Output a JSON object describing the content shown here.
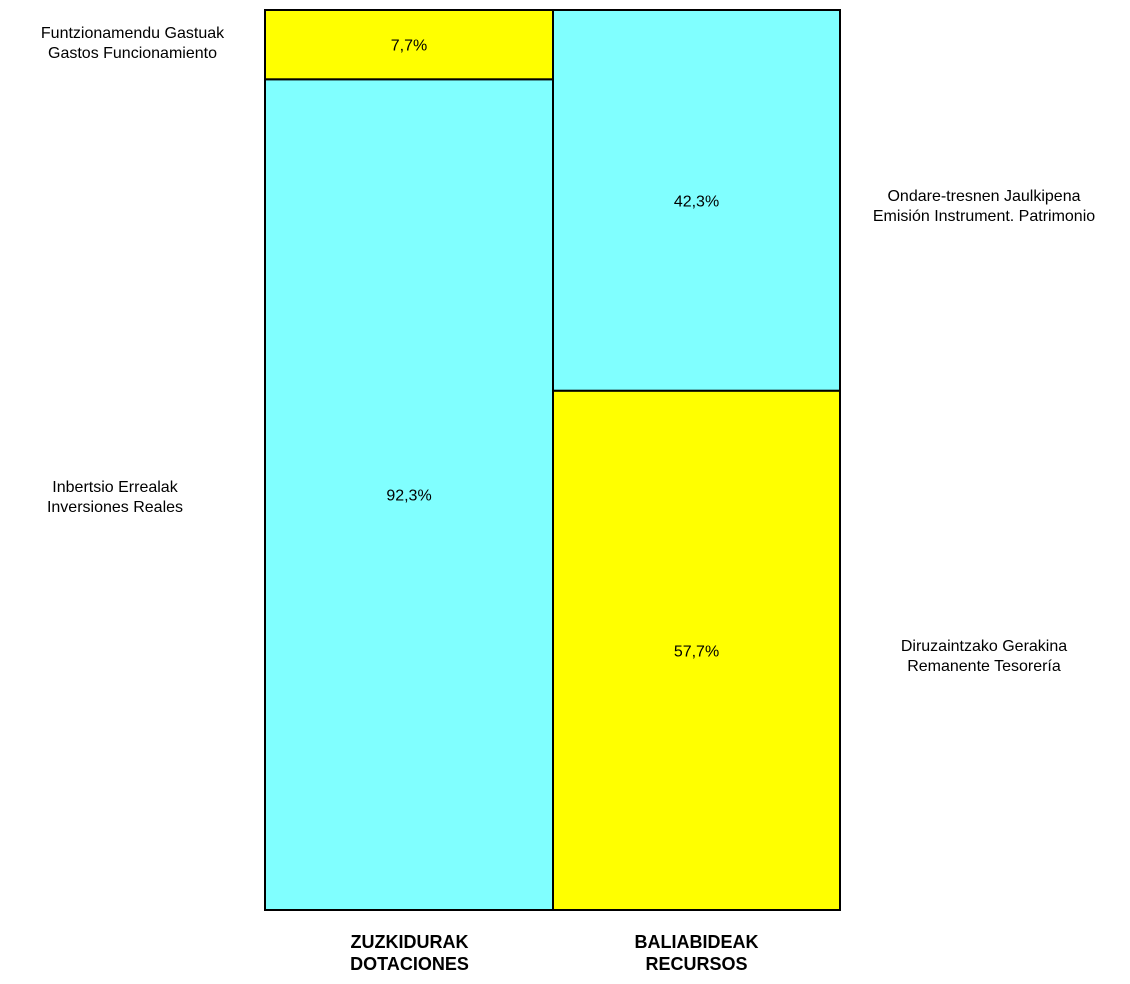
{
  "chart_data": {
    "type": "bar",
    "stacked": true,
    "percent_scale": true,
    "categories": [
      "ZUZKIDURAK\nDOTACIONES",
      "BALIABIDEAK\nRECURSOS"
    ],
    "columns": [
      {
        "label_eu": "ZUZKIDURAK",
        "label_es": "DOTACIONES",
        "segments": [
          {
            "name_eu": "Inbertsio Errealak",
            "name_es": "Inversiones Reales",
            "value": 92.3,
            "label": "92,3%",
            "color": "#80FFFF"
          },
          {
            "name_eu": "Funtzionamendu Gastuak",
            "name_es": "Gastos Funcionamiento",
            "value": 7.7,
            "label": "7,7%",
            "color": "#FFFF00"
          }
        ]
      },
      {
        "label_eu": "BALIABIDEAK",
        "label_es": "RECURSOS",
        "segments": [
          {
            "name_eu": "Diruzaintzako Gerakina",
            "name_es": "Remanente Tesorería",
            "value": 57.7,
            "label": "57,7%",
            "color": "#FFFF00"
          },
          {
            "name_eu": "Ondare-tresnen Jaulkipena",
            "name_es": "Emisión Instrument. Patrimonio",
            "value": 42.3,
            "label": "42,3%",
            "color": "#80FFFF"
          }
        ]
      }
    ],
    "ylim": [
      0,
      100
    ],
    "grid": false,
    "legend": "none"
  }
}
